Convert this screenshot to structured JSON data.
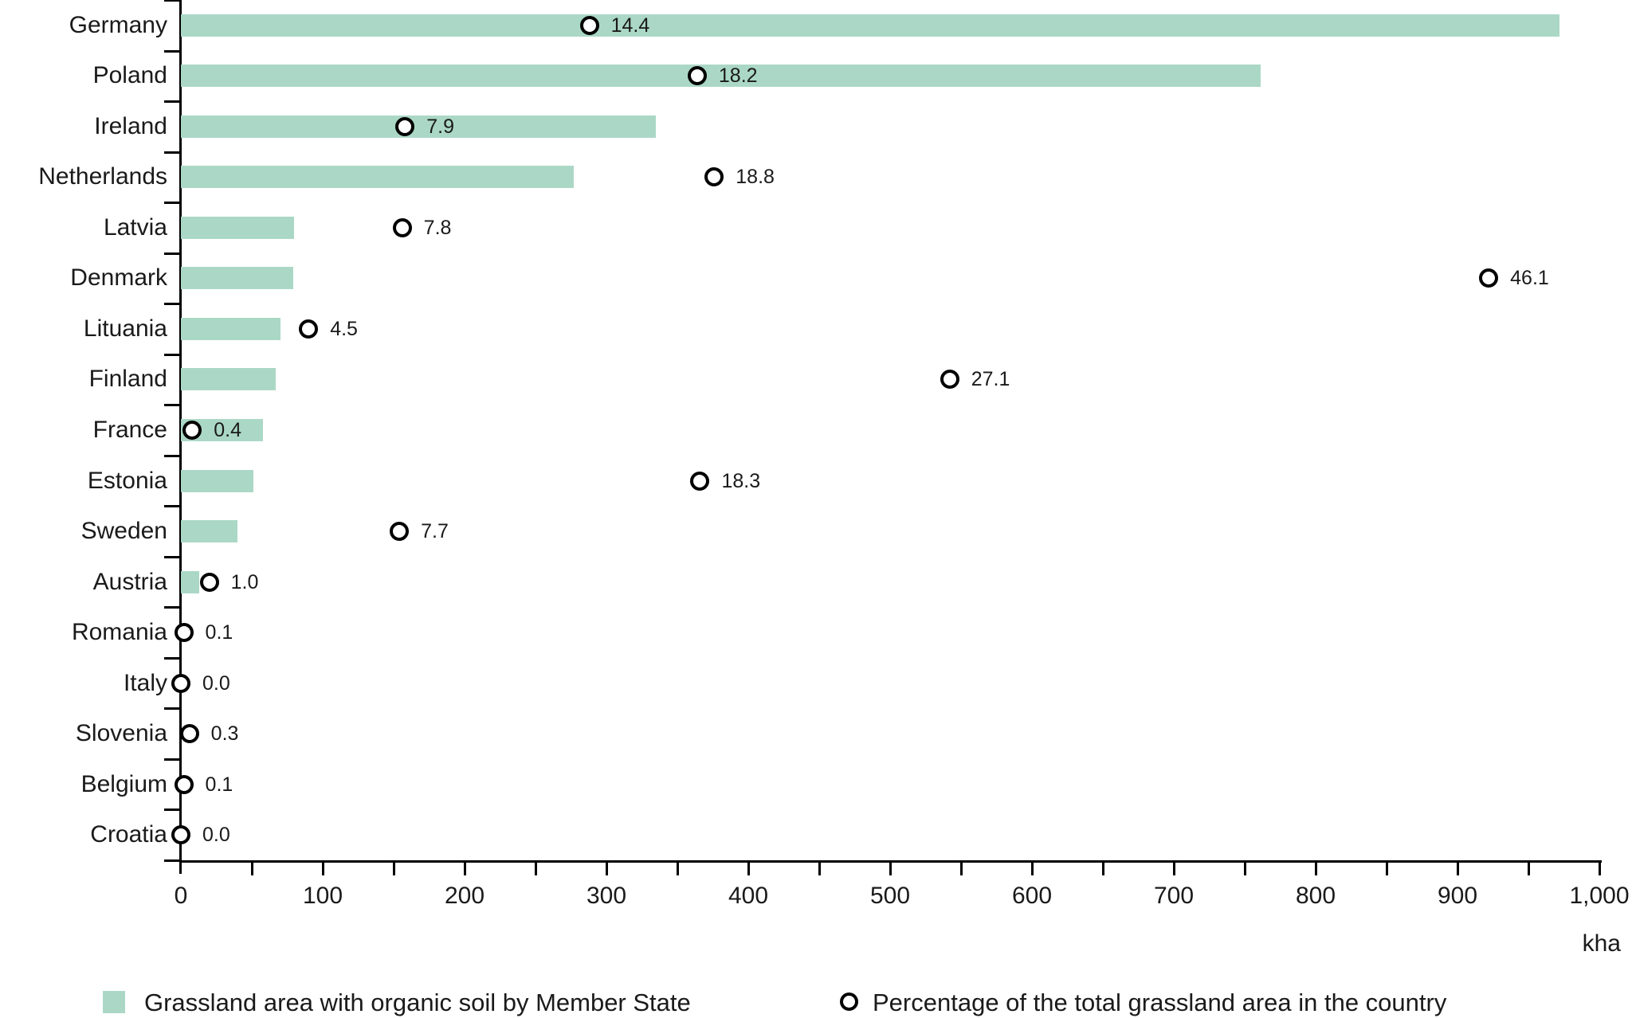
{
  "chart_data": {
    "type": "bar",
    "orientation": "horizontal",
    "title": "",
    "xlabel_unit": "kha",
    "x_min": 0,
    "x_max": 1000,
    "x_major_step": 100,
    "x_minor_step": 50,
    "x_tick_labels": [
      "0",
      "100",
      "200",
      "300",
      "400",
      "500",
      "600",
      "700",
      "800",
      "900",
      "1,000"
    ],
    "grid": false,
    "pct_axis_max": 50,
    "categories": [
      "Germany",
      "Poland",
      "Ireland",
      "Netherlands",
      "Latvia",
      "Denmark",
      "Lituania",
      "Finland",
      "France",
      "Estonia",
      "Sweden",
      "Austria",
      "Romania",
      "Italy",
      "Slovenia",
      "Belgium",
      "Croatia"
    ],
    "series": [
      {
        "name": "Grassland area with organic soil by Member State",
        "type": "bar",
        "unit": "kha",
        "values": [
          972,
          761,
          335,
          277,
          80,
          79,
          70,
          67,
          58,
          51,
          40,
          13,
          0,
          0,
          0,
          0,
          0
        ]
      },
      {
        "name": "Percentage of the total grassland area in the country",
        "type": "scatter",
        "unit": "%",
        "values": [
          14.4,
          18.2,
          7.9,
          18.8,
          7.8,
          46.1,
          4.5,
          27.1,
          0.4,
          18.3,
          7.7,
          1.0,
          0.1,
          0.0,
          0.3,
          0.1,
          0.0
        ],
        "labels": [
          "14.4",
          "18.2",
          "7.9",
          "18.8",
          "7.8",
          "46.1",
          "4.5",
          "27.1",
          "0.4",
          "18.3",
          "7.7",
          "1.0",
          "0.1",
          "0.0",
          "0.3",
          "0.1",
          "0.0"
        ]
      }
    ],
    "legend_position": "bottom"
  },
  "axis": {
    "unit_label": "kha"
  },
  "legend": {
    "bar_label": "Grassland area with organic soil by Member State",
    "pct_label": "Percentage of the total grassland area in the country"
  },
  "colors": {
    "bar_fill": "#abd8c6",
    "marker_stroke": "#000000",
    "marker_fill": "#ffffff",
    "axis": "#000000",
    "text": "#1a1a1a"
  }
}
